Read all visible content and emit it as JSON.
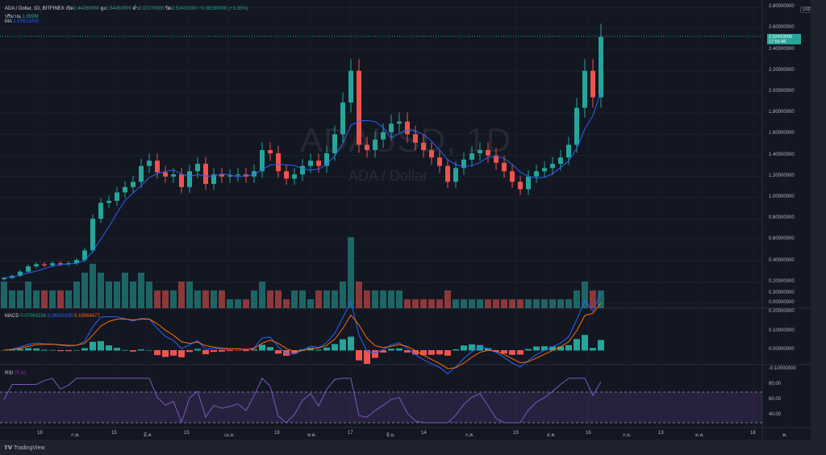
{
  "header": {
    "symbol": "ADA / Dollar, 1D, BITFINEX",
    "open_label": "เปิด",
    "open": "2.44280000",
    "high_label": "สูง",
    "high": "2.54450000",
    "low_label": "ต่ำ",
    "low": "2.37270000",
    "close_label": "ปิด",
    "close": "2.52410000",
    "change": "+0.08190000 (+3.35%)",
    "volume_label": "ปริมาณ",
    "volume": "1.899M",
    "ma_label": "MA",
    "ma": "1.67613200"
  },
  "watermark": {
    "line1": "ADAUSD, 1D",
    "line2": "ADA / Dollar"
  },
  "price_tag": {
    "price": "2.52410000",
    "countdown": "17:56:46"
  },
  "currency": "USD",
  "macd_legend": {
    "label": "MACD",
    "hist": "0.07063158",
    "macd": "0.26631635",
    "signal": "0.19568477"
  },
  "rsi_legend": {
    "label": "RSI",
    "value": "79.81"
  },
  "branding": "TradingView",
  "colors": {
    "up": "#26a69a",
    "down": "#ef5350",
    "ma": "#2962ff",
    "macd": "#2962ff",
    "signal": "#ff6d00",
    "rsi": "#7e57c2"
  },
  "chart_data": {
    "type": "candlestick",
    "price_ticks": [
      "2.80000000",
      "2.60000000",
      "2.40000000",
      "2.20000000",
      "2.00000000",
      "1.80000000",
      "1.60000000",
      "1.40000000",
      "1.20000000",
      "1.00000000",
      "0.80000000",
      "0.60000000",
      "0.40000000",
      "0.20000000",
      "0.00000000"
    ],
    "macd_ticks": [
      "0.30000000",
      "0.20000000",
      "0.10000000",
      "0.00000000",
      "-0.10000000"
    ],
    "rsi_ticks": [
      "80.00",
      "60.00",
      "40.00"
    ],
    "rsi_band": [
      30,
      70
    ],
    "time_ticks": [
      "18",
      "ก.พ.",
      "15",
      "มี.ค.",
      "15",
      "เม.ย.",
      "19",
      "พ.ค.",
      "17",
      "มิ.ย.",
      "14",
      "ก.ค.",
      "19",
      "ส.ค.",
      "16",
      "ก.ย.",
      "13",
      "ต.ค.",
      "18",
      "พ."
    ],
    "ylim": [
      0,
      2.8
    ],
    "closes": [
      0.24,
      0.26,
      0.3,
      0.35,
      0.37,
      0.36,
      0.38,
      0.37,
      0.38,
      0.41,
      0.5,
      0.8,
      0.95,
      0.97,
      1.05,
      1.1,
      1.15,
      1.3,
      1.35,
      1.24,
      1.2,
      1.22,
      1.1,
      1.25,
      1.32,
      1.13,
      1.22,
      1.2,
      1.21,
      1.22,
      1.2,
      1.25,
      1.45,
      1.42,
      1.25,
      1.18,
      1.22,
      1.3,
      1.35,
      1.3,
      1.42,
      1.6,
      1.9,
      2.2,
      1.5,
      1.45,
      1.55,
      1.62,
      1.7,
      1.72,
      1.6,
      1.52,
      1.45,
      1.38,
      1.3,
      1.15,
      1.28,
      1.36,
      1.42,
      1.45,
      1.4,
      1.33,
      1.25,
      1.15,
      1.08,
      1.2,
      1.25,
      1.28,
      1.32,
      1.38,
      1.5,
      1.85,
      2.2,
      1.95,
      2.52
    ],
    "volume": [
      3,
      2,
      2,
      3,
      2,
      2,
      2,
      2,
      2,
      3,
      4,
      5,
      4,
      3,
      3,
      4,
      3,
      4,
      3,
      2,
      2,
      2,
      3,
      3,
      2,
      2,
      2,
      2,
      1,
      1,
      1,
      2,
      3,
      2,
      2,
      1,
      2,
      2,
      1,
      2,
      2,
      2,
      3,
      8,
      3,
      2,
      2,
      2,
      2,
      2,
      1,
      1,
      1,
      1,
      1,
      2,
      1,
      1,
      1,
      1,
      1,
      1,
      1,
      1,
      1,
      1,
      1,
      1,
      1,
      1,
      1,
      2,
      3,
      2,
      2
    ]
  }
}
